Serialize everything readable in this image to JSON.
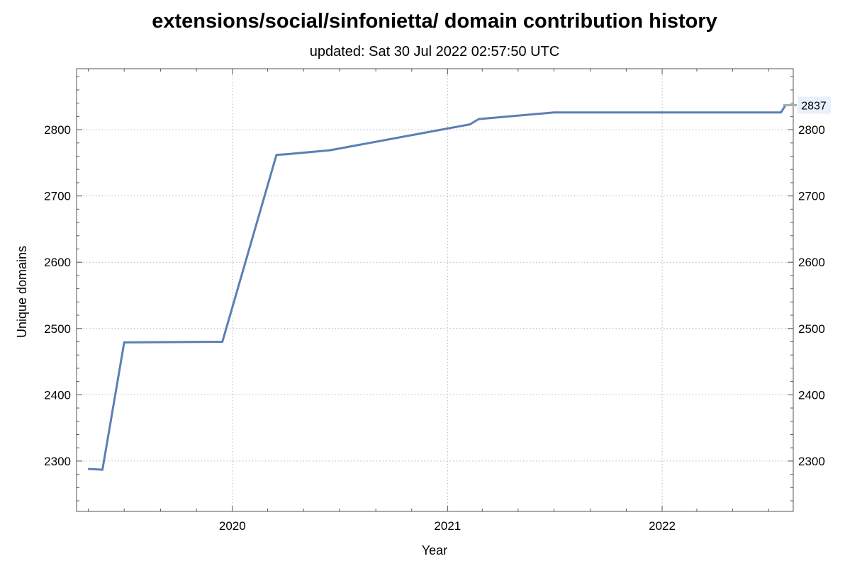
{
  "chart_data": {
    "type": "line",
    "title": "extensions/social/sinfonietta/ domain contribution history",
    "subtitle": "updated: Sat 30 Jul 2022 02:57:50 UTC",
    "xlabel": "Year",
    "ylabel": "Unique domains",
    "x_tick_labels": [
      "2020",
      "2021",
      "2022"
    ],
    "y_tick_labels": [
      "2300",
      "2400",
      "2500",
      "2600",
      "2700",
      "2800"
    ],
    "last_value_label": "2837",
    "xlim": [
      "2019-04-11",
      "2022-08-12"
    ],
    "ylim": [
      2224,
      2892
    ],
    "grid": true,
    "line_color": "#5b7fb5",
    "series": [
      {
        "points": [
          [
            "2019-05-02",
            2288
          ],
          [
            "2019-05-25",
            2287
          ],
          [
            "2019-07-01",
            2479
          ],
          [
            "2019-12-15",
            2480
          ],
          [
            "2020-03-16",
            2762
          ],
          [
            "2020-04-02",
            2763
          ],
          [
            "2020-06-15",
            2769
          ],
          [
            "2021-02-08",
            2808
          ],
          [
            "2021-02-23",
            2816
          ],
          [
            "2021-07-01",
            2826
          ],
          [
            "2022-07-22",
            2826
          ],
          [
            "2022-07-30",
            2837
          ]
        ]
      }
    ]
  }
}
